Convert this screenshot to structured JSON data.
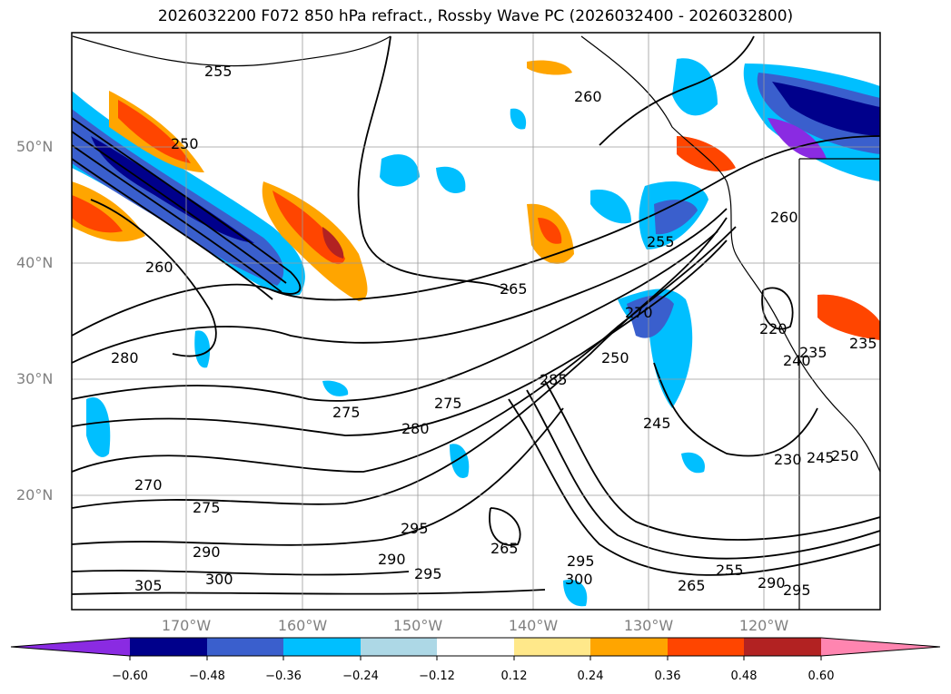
{
  "title": "2026032200 F072 850 hPa refract., Rossby Wave PC (2026032400 - 2026032800)",
  "lat_labels": [
    "50°N",
    "40°N",
    "30°N",
    "20°N"
  ],
  "lon_labels": [
    "170°W",
    "160°W",
    "150°W",
    "140°W",
    "130°W",
    "120°W"
  ],
  "colorbar": {
    "ticks": [
      "−0.60",
      "−0.48",
      "−0.36",
      "−0.24",
      "−0.12",
      "0.12",
      "0.24",
      "0.36",
      "0.48",
      "0.60"
    ],
    "colors": [
      "#8a2be2",
      "#00008b",
      "#3a5fcd",
      "#00bfff",
      "#add8e6",
      "#ffffff",
      "#ffe88a",
      "#ffa500",
      "#ff4500",
      "#b22222",
      "#ff85b0"
    ]
  },
  "contour_labels": [
    "255",
    "260",
    "250",
    "260",
    "255",
    "265",
    "260",
    "275",
    "280",
    "275",
    "285",
    "270",
    "250",
    "245",
    "235",
    "230",
    "245",
    "250",
    "280",
    "270",
    "275",
    "290",
    "300",
    "305",
    "295",
    "290",
    "295",
    "265",
    "295",
    "300",
    "265",
    "255",
    "290",
    "295",
    "220",
    "240",
    "235"
  ]
}
